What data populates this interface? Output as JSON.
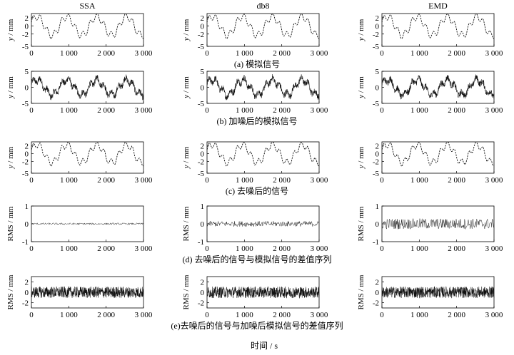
{
  "columns": [
    "SSA",
    "db8",
    "EMD"
  ],
  "rows": [
    {
      "caption": "(a) 模拟信号",
      "ylabel_var": "y",
      "ylabel_unit": " / mm",
      "yticks": [
        "2",
        "0",
        "-2",
        "-5"
      ]
    },
    {
      "caption": "(b) 加噪后的模拟信号",
      "ylabel_var": "y",
      "ylabel_unit": " / mm",
      "yticks": [
        "5",
        "0",
        "-5"
      ]
    },
    {
      "caption": "(c) 去噪后的信号",
      "ylabel_var": "y",
      "ylabel_unit": " / mm",
      "yticks": [
        "2",
        "0",
        "-2",
        "-5"
      ]
    },
    {
      "caption": "(d) 去噪后的信号与模拟信号的差值序列",
      "ylabel_var": "",
      "ylabel_unit": "RMS / mm",
      "yticks": [
        "1",
        "0",
        "-1"
      ]
    },
    {
      "caption": "(e)去噪后的信号与加噪后模拟信号的差值序列",
      "ylabel_var": "",
      "ylabel_unit": "RMS / mm",
      "yticks": [
        "2",
        "0",
        "-2"
      ]
    }
  ],
  "xticks": [
    "0",
    "1 000",
    "2 000",
    "3 000"
  ],
  "xlabel": "时间 / s",
  "chart_data": [
    {
      "type": "line",
      "row": "(a)",
      "column": "SSA",
      "x_range": [
        0,
        3000
      ],
      "ylim": [
        -5,
        3
      ],
      "signal": "simulated",
      "amplitude_approx": 2.5
    },
    {
      "type": "line",
      "row": "(b)",
      "column": "SSA",
      "x_range": [
        0,
        3000
      ],
      "ylim": [
        -5,
        5
      ],
      "signal": "noisy",
      "amplitude_approx": 3.5
    },
    {
      "type": "line",
      "row": "(c)",
      "column": "SSA",
      "x_range": [
        0,
        3000
      ],
      "ylim": [
        -5,
        3
      ],
      "signal": "denoised",
      "amplitude_approx": 2.5
    },
    {
      "type": "line",
      "row": "(d)",
      "column": "SSA",
      "x_range": [
        0,
        3000
      ],
      "ylim": [
        -1,
        1
      ],
      "signal": "residual",
      "amplitude_approx": 0.05
    },
    {
      "type": "line",
      "row": "(e)",
      "column": "SSA",
      "x_range": [
        0,
        3000
      ],
      "ylim": [
        -3,
        3
      ],
      "signal": "noise",
      "amplitude_approx": 1.0
    },
    {
      "type": "line",
      "row": "(a)",
      "column": "db8",
      "x_range": [
        0,
        3000
      ],
      "ylim": [
        -5,
        3
      ],
      "signal": "simulated",
      "amplitude_approx": 2.5
    },
    {
      "type": "line",
      "row": "(b)",
      "column": "db8",
      "x_range": [
        0,
        3000
      ],
      "ylim": [
        -5,
        5
      ],
      "signal": "noisy",
      "amplitude_approx": 3.5
    },
    {
      "type": "line",
      "row": "(c)",
      "column": "db8",
      "x_range": [
        0,
        3000
      ],
      "ylim": [
        -5,
        3
      ],
      "signal": "denoised",
      "amplitude_approx": 2.5
    },
    {
      "type": "line",
      "row": "(d)",
      "column": "db8",
      "x_range": [
        0,
        3000
      ],
      "ylim": [
        -1,
        1
      ],
      "signal": "residual",
      "amplitude_approx": 0.15
    },
    {
      "type": "line",
      "row": "(e)",
      "column": "db8",
      "x_range": [
        0,
        3000
      ],
      "ylim": [
        -3,
        3
      ],
      "signal": "noise",
      "amplitude_approx": 1.0
    },
    {
      "type": "line",
      "row": "(a)",
      "column": "EMD",
      "x_range": [
        0,
        3000
      ],
      "ylim": [
        -5,
        3
      ],
      "signal": "simulated",
      "amplitude_approx": 2.5
    },
    {
      "type": "line",
      "row": "(b)",
      "column": "EMD",
      "x_range": [
        0,
        3000
      ],
      "ylim": [
        -5,
        5
      ],
      "signal": "noisy",
      "amplitude_approx": 3.5
    },
    {
      "type": "line",
      "row": "(c)",
      "column": "EMD",
      "x_range": [
        0,
        3000
      ],
      "ylim": [
        -5,
        3
      ],
      "signal": "denoised",
      "amplitude_approx": 2.5
    },
    {
      "type": "line",
      "row": "(d)",
      "column": "EMD",
      "x_range": [
        0,
        3000
      ],
      "ylim": [
        -1,
        1
      ],
      "signal": "residual",
      "amplitude_approx": 0.3
    },
    {
      "type": "line",
      "row": "(e)",
      "column": "EMD",
      "x_range": [
        0,
        3000
      ],
      "ylim": [
        -3,
        3
      ],
      "signal": "noise",
      "amplitude_approx": 1.0
    }
  ]
}
